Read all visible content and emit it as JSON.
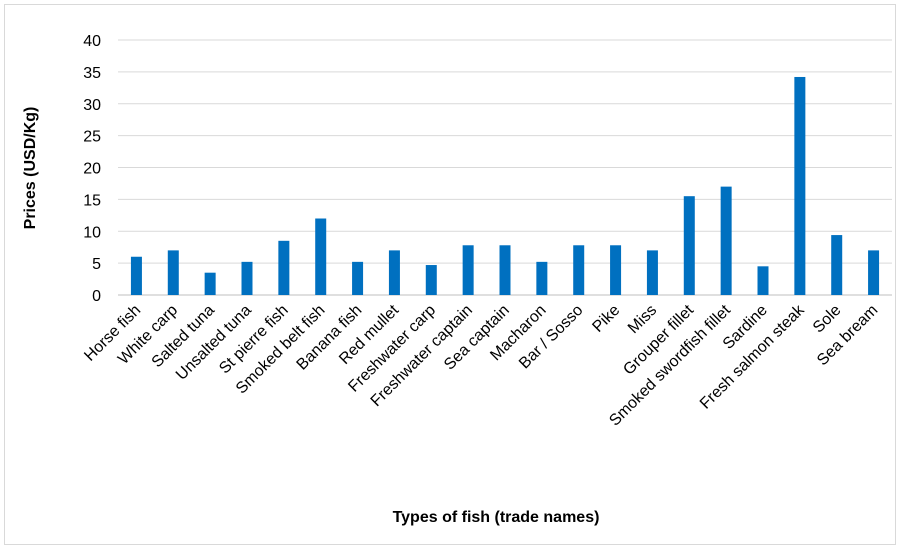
{
  "chart_data": {
    "type": "bar",
    "title": "",
    "xlabel": "Types of  fish (trade names)",
    "ylabel": "Prices (USD/Kg)",
    "ylim": [
      0,
      40
    ],
    "yticks": [
      0,
      5,
      10,
      15,
      20,
      25,
      30,
      35,
      40
    ],
    "grid": true,
    "legend": "none",
    "bar_color": "#0070c0",
    "categories": [
      "Horse fish",
      "White carp",
      "Salted tuna",
      "Unsalted tuna",
      "St pierre fish",
      "Smoked belt fish",
      "Banana fish",
      "Red mullet",
      "Freshwater carp",
      "Freshwater captain",
      "Sea captain",
      "Macharon",
      "Bar / Sosso",
      "Pike",
      "Miss",
      "Grouper fillet",
      "Smoked swordfish fillet",
      "Sardine",
      "Fresh salmon steak",
      "Sole",
      "Sea bream"
    ],
    "values": [
      6,
      7,
      3.5,
      5.2,
      8.5,
      12,
      5.2,
      7,
      4.7,
      7.8,
      7.8,
      5.2,
      7.8,
      7.8,
      7,
      15.5,
      17,
      4.5,
      34.2,
      9.4,
      7
    ]
  }
}
